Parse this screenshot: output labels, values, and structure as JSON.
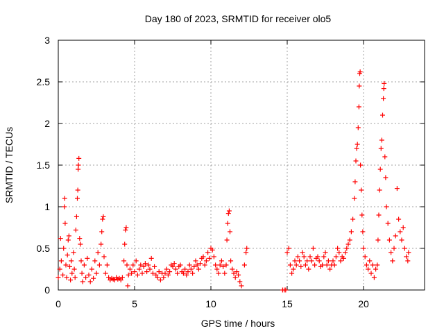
{
  "chart_data": {
    "type": "scatter",
    "title": "Day 180 of 2023, SRMTID for receiver olo5",
    "xlabel": "GPS time / hours",
    "ylabel": "SRMTID / TECUs",
    "xlim": [
      0,
      24
    ],
    "ylim": [
      0,
      3
    ],
    "xticks": [
      0,
      5,
      10,
      15,
      20
    ],
    "xtick_labels": [
      "0",
      "5",
      "10",
      "15",
      "20"
    ],
    "yticks": [
      0,
      0.5,
      1,
      1.5,
      2,
      2.5,
      3
    ],
    "ytick_labels": [
      "0",
      "0.5",
      "1",
      "1.5",
      "2",
      "2.5",
      "3"
    ],
    "grid": true,
    "marker": "+",
    "color": "#ff0000",
    "series": [
      {
        "name": "SRMTID",
        "points": [
          [
            0.0,
            0.15
          ],
          [
            0.1,
            0.25
          ],
          [
            0.15,
            0.62
          ],
          [
            0.2,
            0.35
          ],
          [
            0.3,
            0.18
          ],
          [
            0.35,
            0.5
          ],
          [
            0.4,
            1.0
          ],
          [
            0.42,
            1.1
          ],
          [
            0.45,
            0.8
          ],
          [
            0.5,
            0.3
          ],
          [
            0.55,
            0.15
          ],
          [
            0.6,
            0.42
          ],
          [
            0.65,
            0.6
          ],
          [
            0.7,
            0.65
          ],
          [
            0.75,
            0.28
          ],
          [
            0.8,
            0.12
          ],
          [
            0.85,
            0.35
          ],
          [
            0.9,
            0.2
          ],
          [
            1.0,
            0.45
          ],
          [
            1.05,
            0.25
          ],
          [
            1.1,
            0.15
          ],
          [
            1.15,
            0.72
          ],
          [
            1.2,
            0.88
          ],
          [
            1.25,
            1.1
          ],
          [
            1.28,
            1.2
          ],
          [
            1.3,
            1.45
          ],
          [
            1.32,
            1.5
          ],
          [
            1.35,
            1.58
          ],
          [
            1.4,
            0.62
          ],
          [
            1.45,
            0.55
          ],
          [
            1.5,
            0.35
          ],
          [
            1.55,
            0.2
          ],
          [
            1.6,
            0.1
          ],
          [
            1.7,
            0.3
          ],
          [
            1.8,
            0.15
          ],
          [
            1.9,
            0.38
          ],
          [
            2.0,
            0.18
          ],
          [
            2.1,
            0.1
          ],
          [
            2.2,
            0.25
          ],
          [
            2.3,
            0.14
          ],
          [
            2.4,
            0.35
          ],
          [
            2.5,
            0.2
          ],
          [
            2.6,
            0.45
          ],
          [
            2.7,
            0.3
          ],
          [
            2.8,
            0.55
          ],
          [
            2.85,
            0.7
          ],
          [
            2.9,
            0.85
          ],
          [
            2.95,
            0.88
          ],
          [
            3.0,
            0.4
          ],
          [
            3.1,
            0.2
          ],
          [
            3.2,
            0.3
          ],
          [
            3.3,
            0.15
          ],
          [
            3.4,
            0.12
          ],
          [
            3.5,
            0.14
          ],
          [
            3.6,
            0.13
          ],
          [
            3.7,
            0.12
          ],
          [
            3.8,
            0.15
          ],
          [
            3.9,
            0.13
          ],
          [
            4.0,
            0.14
          ],
          [
            4.1,
            0.12
          ],
          [
            4.2,
            0.15
          ],
          [
            4.3,
            0.35
          ],
          [
            4.35,
            0.55
          ],
          [
            4.4,
            0.72
          ],
          [
            4.45,
            0.75
          ],
          [
            4.5,
            0.3
          ],
          [
            4.55,
            0.05
          ],
          [
            4.6,
            0.18
          ],
          [
            4.7,
            0.25
          ],
          [
            4.8,
            0.2
          ],
          [
            4.9,
            0.3
          ],
          [
            5.0,
            0.22
          ],
          [
            5.1,
            0.35
          ],
          [
            5.2,
            0.18
          ],
          [
            5.3,
            0.25
          ],
          [
            5.4,
            0.3
          ],
          [
            5.5,
            0.2
          ],
          [
            5.6,
            0.28
          ],
          [
            5.7,
            0.32
          ],
          [
            5.8,
            0.22
          ],
          [
            5.9,
            0.3
          ],
          [
            6.0,
            0.25
          ],
          [
            6.1,
            0.38
          ],
          [
            6.2,
            0.2
          ],
          [
            6.3,
            0.28
          ],
          [
            6.4,
            0.18
          ],
          [
            6.5,
            0.15
          ],
          [
            6.6,
            0.22
          ],
          [
            6.7,
            0.12
          ],
          [
            6.8,
            0.2
          ],
          [
            6.9,
            0.15
          ],
          [
            7.0,
            0.2
          ],
          [
            7.1,
            0.25
          ],
          [
            7.2,
            0.18
          ],
          [
            7.3,
            0.22
          ],
          [
            7.4,
            0.3
          ],
          [
            7.5,
            0.28
          ],
          [
            7.6,
            0.32
          ],
          [
            7.7,
            0.25
          ],
          [
            7.8,
            0.2
          ],
          [
            7.9,
            0.28
          ],
          [
            8.0,
            0.3
          ],
          [
            8.1,
            0.22
          ],
          [
            8.2,
            0.2
          ],
          [
            8.3,
            0.25
          ],
          [
            8.4,
            0.18
          ],
          [
            8.5,
            0.22
          ],
          [
            8.6,
            0.3
          ],
          [
            8.7,
            0.25
          ],
          [
            8.8,
            0.2
          ],
          [
            8.9,
            0.28
          ],
          [
            9.0,
            0.35
          ],
          [
            9.1,
            0.3
          ],
          [
            9.2,
            0.25
          ],
          [
            9.3,
            0.32
          ],
          [
            9.4,
            0.38
          ],
          [
            9.5,
            0.4
          ],
          [
            9.6,
            0.3
          ],
          [
            9.7,
            0.35
          ],
          [
            9.8,
            0.45
          ],
          [
            9.9,
            0.38
          ],
          [
            10.0,
            0.5
          ],
          [
            10.1,
            0.48
          ],
          [
            10.2,
            0.4
          ],
          [
            10.3,
            0.3
          ],
          [
            10.4,
            0.25
          ],
          [
            10.5,
            0.2
          ],
          [
            10.6,
            0.3
          ],
          [
            10.7,
            0.35
          ],
          [
            10.8,
            0.28
          ],
          [
            10.9,
            0.2
          ],
          [
            11.0,
            0.3
          ],
          [
            11.05,
            0.6
          ],
          [
            11.1,
            0.8
          ],
          [
            11.15,
            0.92
          ],
          [
            11.2,
            0.95
          ],
          [
            11.25,
            0.7
          ],
          [
            11.3,
            0.35
          ],
          [
            11.4,
            0.25
          ],
          [
            11.5,
            0.2
          ],
          [
            11.6,
            0.15
          ],
          [
            11.7,
            0.22
          ],
          [
            11.8,
            0.18
          ],
          [
            11.9,
            0.1
          ],
          [
            12.0,
            0.05
          ],
          [
            12.2,
            0.3
          ],
          [
            12.3,
            0.45
          ],
          [
            12.35,
            0.5
          ],
          [
            14.7,
            0.0
          ],
          [
            14.8,
            0.0
          ],
          [
            14.9,
            0.0
          ],
          [
            15.0,
            0.45
          ],
          [
            15.1,
            0.5
          ],
          [
            15.2,
            0.3
          ],
          [
            15.3,
            0.2
          ],
          [
            15.4,
            0.25
          ],
          [
            15.5,
            0.35
          ],
          [
            15.6,
            0.3
          ],
          [
            15.7,
            0.4
          ],
          [
            15.8,
            0.35
          ],
          [
            15.9,
            0.28
          ],
          [
            16.0,
            0.45
          ],
          [
            16.1,
            0.4
          ],
          [
            16.2,
            0.3
          ],
          [
            16.3,
            0.35
          ],
          [
            16.4,
            0.25
          ],
          [
            16.5,
            0.4
          ],
          [
            16.6,
            0.35
          ],
          [
            16.7,
            0.5
          ],
          [
            16.8,
            0.3
          ],
          [
            16.9,
            0.38
          ],
          [
            17.0,
            0.4
          ],
          [
            17.1,
            0.35
          ],
          [
            17.2,
            0.28
          ],
          [
            17.3,
            0.3
          ],
          [
            17.4,
            0.4
          ],
          [
            17.5,
            0.45
          ],
          [
            17.6,
            0.3
          ],
          [
            17.7,
            0.35
          ],
          [
            17.8,
            0.25
          ],
          [
            17.9,
            0.3
          ],
          [
            18.0,
            0.35
          ],
          [
            18.1,
            0.3
          ],
          [
            18.2,
            0.4
          ],
          [
            18.3,
            0.5
          ],
          [
            18.4,
            0.45
          ],
          [
            18.5,
            0.35
          ],
          [
            18.6,
            0.4
          ],
          [
            18.7,
            0.38
          ],
          [
            18.8,
            0.45
          ],
          [
            18.9,
            0.5
          ],
          [
            19.0,
            0.55
          ],
          [
            19.1,
            0.6
          ],
          [
            19.2,
            0.7
          ],
          [
            19.3,
            0.85
          ],
          [
            19.4,
            1.1
          ],
          [
            19.45,
            1.3
          ],
          [
            19.5,
            1.55
          ],
          [
            19.55,
            1.7
          ],
          [
            19.6,
            1.75
          ],
          [
            19.65,
            1.95
          ],
          [
            19.7,
            2.2
          ],
          [
            19.72,
            2.45
          ],
          [
            19.75,
            2.6
          ],
          [
            19.78,
            2.62
          ],
          [
            19.8,
            1.5
          ],
          [
            19.85,
            1.2
          ],
          [
            19.9,
            0.9
          ],
          [
            19.95,
            0.7
          ],
          [
            20.0,
            0.5
          ],
          [
            20.1,
            0.4
          ],
          [
            20.2,
            0.3
          ],
          [
            20.3,
            0.25
          ],
          [
            20.4,
            0.35
          ],
          [
            20.5,
            0.2
          ],
          [
            20.6,
            0.3
          ],
          [
            20.7,
            0.15
          ],
          [
            20.8,
            0.25
          ],
          [
            20.9,
            0.3
          ],
          [
            20.95,
            0.6
          ],
          [
            21.0,
            0.9
          ],
          [
            21.05,
            1.2
          ],
          [
            21.1,
            1.45
          ],
          [
            21.15,
            1.7
          ],
          [
            21.2,
            1.8
          ],
          [
            21.25,
            2.1
          ],
          [
            21.3,
            2.3
          ],
          [
            21.33,
            2.42
          ],
          [
            21.35,
            2.48
          ],
          [
            21.4,
            1.6
          ],
          [
            21.45,
            1.35
          ],
          [
            21.5,
            1.0
          ],
          [
            21.6,
            0.8
          ],
          [
            21.7,
            0.6
          ],
          [
            21.8,
            0.45
          ],
          [
            21.9,
            0.35
          ],
          [
            22.0,
            0.5
          ],
          [
            22.1,
            0.65
          ],
          [
            22.2,
            1.22
          ],
          [
            22.3,
            0.85
          ],
          [
            22.4,
            0.7
          ],
          [
            22.5,
            0.6
          ],
          [
            22.6,
            0.75
          ],
          [
            22.7,
            0.5
          ],
          [
            22.8,
            0.4
          ],
          [
            22.9,
            0.35
          ],
          [
            22.95,
            0.45
          ]
        ]
      }
    ]
  }
}
